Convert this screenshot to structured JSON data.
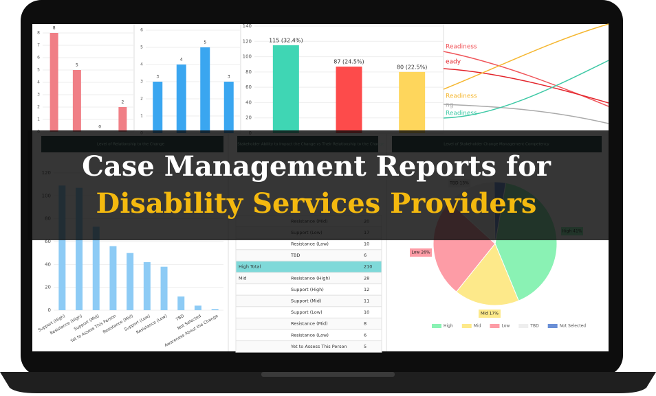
{
  "headline": {
    "line1": "Case Management Reports for",
    "line2": "Disability Services Providers"
  },
  "chart_a": {
    "type": "bar",
    "values": [
      8,
      5,
      0,
      2
    ],
    "color": "#f07f86",
    "ylim": [
      0,
      8
    ],
    "yticks": [
      0,
      1,
      2,
      3,
      4,
      5,
      6,
      7,
      8
    ]
  },
  "chart_b": {
    "type": "bar",
    "values": [
      3,
      4,
      5,
      3
    ],
    "color": "#3aa6f0",
    "ylim": [
      0,
      6
    ],
    "yticks": [
      0,
      1,
      2,
      3,
      4,
      5,
      6
    ]
  },
  "chart_c": {
    "type": "bar",
    "values": [
      115,
      87,
      80
    ],
    "value_labels": [
      "115 (32.4%)",
      "87 (24.5%)",
      "80 (22.5%)"
    ],
    "colors": [
      "#3fd6b4",
      "#fd4b4b",
      "#fed65c"
    ],
    "ylim": [
      0,
      140
    ],
    "yticks": [
      0,
      20,
      40,
      60,
      80,
      100,
      120,
      140
    ]
  },
  "chart_d": {
    "labels": [
      "Readiness",
      "eady",
      "Readiness",
      "ng",
      "Readiness"
    ],
    "colors": [
      "#f0555a",
      "#e3242b",
      "#f5b731",
      "#aaaaaa",
      "#3fc9a6"
    ]
  },
  "panel_titles": [
    "Level of Relationship to the Change",
    "Stakeholder Ability to Impact the Change vs Their Relationship to the Change",
    "Level of Stakeholder Change Management Competency"
  ],
  "chart_e": {
    "type": "bar",
    "categories": [
      "Support (High)",
      "Resistance (High)",
      "Support (Mid)",
      "Yet to Assess This Person",
      "Resistance (Mid)",
      "Support (Low)",
      "Resistance (Low)",
      "TBD",
      "Not Selected",
      "Awareness About the Change"
    ],
    "values": [
      109,
      107,
      73,
      56,
      50,
      42,
      38,
      12,
      4,
      1
    ],
    "color": "#8dcbf5",
    "ylim": [
      0,
      120
    ],
    "yticks": [
      0,
      20,
      40,
      60,
      80,
      100,
      120
    ]
  },
  "table": {
    "rows": [
      [
        "",
        "Resistance (Mid)",
        "20"
      ],
      [
        "",
        "Support (Low)",
        "17"
      ],
      [
        "",
        "Resistance (Low)",
        "10"
      ],
      [
        "",
        "TBD",
        "6"
      ],
      [
        "High Total",
        "",
        "210"
      ],
      [
        "Mid",
        "Resistance (High)",
        "28"
      ],
      [
        "",
        "Support (High)",
        "12"
      ],
      [
        "",
        "Support (Mid)",
        "11"
      ],
      [
        "",
        "Support (Low)",
        "10"
      ],
      [
        "",
        "Resistance (Mid)",
        "8"
      ],
      [
        "",
        "Resistance (Low)",
        "6"
      ],
      [
        "",
        "Yet to Assess This Person",
        "5"
      ]
    ]
  },
  "chart_f": {
    "type": "pie",
    "categories": [
      "High",
      "Mid",
      "Low",
      "TBD",
      "Not Selected"
    ],
    "values": [
      41,
      17,
      26,
      13,
      3
    ],
    "value_labels": [
      "High 41%",
      "Mid 17%",
      "Low 26%",
      "TBD 13%",
      null
    ],
    "colors": [
      "#8af2b4",
      "#fde98a",
      "#fd9ca6",
      "#eeeeee",
      "#6a8fd6"
    ]
  }
}
